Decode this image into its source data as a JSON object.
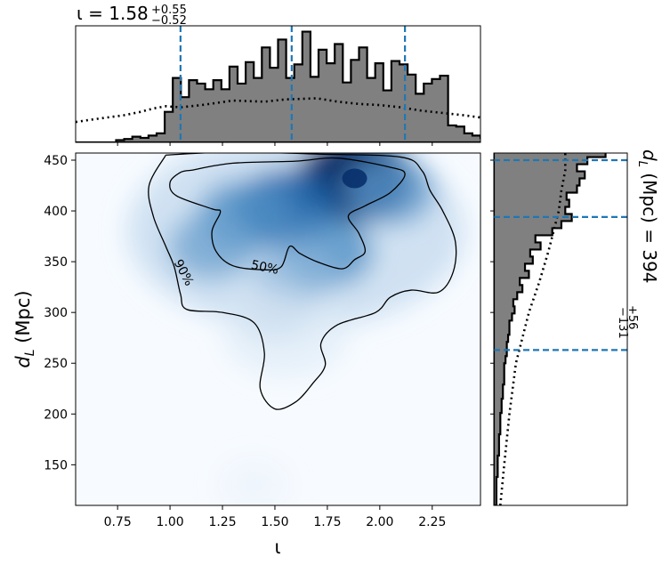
{
  "chart_data": [
    {
      "panel": "top-marginal",
      "type": "histogram",
      "title_symbol": "ι",
      "title_value": "1.58",
      "title_plus": "+0.55",
      "title_minus": "−0.52",
      "xlim": [
        0.55,
        2.48
      ],
      "bin_edges_start": 0.55,
      "bin_width": 0.0386,
      "posterior_counts": [
        0,
        0,
        0,
        0,
        0,
        0.02,
        0.03,
        0.05,
        0.04,
        0.06,
        0.08,
        0.27,
        0.57,
        0.4,
        0.55,
        0.52,
        0.47,
        0.55,
        0.47,
        0.67,
        0.52,
        0.71,
        0.57,
        0.84,
        0.66,
        0.91,
        0.57,
        0.69,
        0.98,
        0.58,
        0.82,
        0.7,
        0.87,
        0.53,
        0.73,
        0.84,
        0.57,
        0.7,
        0.46,
        0.72,
        0.69,
        0.6,
        0.43,
        0.52,
        0.56,
        0.59,
        0.15,
        0.14,
        0.08,
        0.06,
        0.04,
        0.05,
        0.04,
        0.03,
        0.03,
        0.02,
        0.03,
        0.02,
        0,
        0,
        0,
        0
      ],
      "prior_curve": [
        [
          0.55,
          0.18
        ],
        [
          0.62,
          0.2
        ],
        [
          0.7,
          0.22
        ],
        [
          0.78,
          0.24
        ],
        [
          0.86,
          0.27
        ],
        [
          0.92,
          0.3
        ],
        [
          0.98,
          0.32
        ],
        [
          1.05,
          0.31
        ],
        [
          1.15,
          0.33
        ],
        [
          1.3,
          0.37
        ],
        [
          1.45,
          0.36
        ],
        [
          1.55,
          0.38
        ],
        [
          1.7,
          0.39
        ],
        [
          1.8,
          0.36
        ],
        [
          1.9,
          0.34
        ],
        [
          2.0,
          0.33
        ],
        [
          2.1,
          0.31
        ],
        [
          2.2,
          0.28
        ],
        [
          2.3,
          0.26
        ],
        [
          2.4,
          0.24
        ],
        [
          2.48,
          0.22
        ]
      ],
      "quantile_lines": [
        1.05,
        1.58,
        2.12
      ]
    },
    {
      "panel": "joint-density",
      "type": "heatmap",
      "xlabel": "ι",
      "ylabel": "d_L (Mpc)",
      "xlim": [
        0.55,
        2.48
      ],
      "ylim": [
        110,
        457
      ],
      "x_ticks": [
        "0.75",
        "1.00",
        "1.25",
        "1.50",
        "1.75",
        "2.00",
        "2.25"
      ],
      "y_ticks": [
        "150",
        "200",
        "250",
        "300",
        "350",
        "400",
        "450"
      ],
      "x_tick_values": [
        0.75,
        1.0,
        1.25,
        1.5,
        1.75,
        2.0,
        2.25
      ],
      "y_tick_values": [
        150,
        200,
        250,
        300,
        350,
        400,
        450
      ],
      "colormap": "Blues",
      "density_peaks": [
        {
          "x": 1.88,
          "y": 432,
          "weight": 1.0
        },
        {
          "x": 1.55,
          "y": 402,
          "weight": 0.75
        },
        {
          "x": 1.35,
          "y": 395,
          "weight": 0.55
        },
        {
          "x": 1.75,
          "y": 360,
          "weight": 0.55
        },
        {
          "x": 1.2,
          "y": 365,
          "weight": 0.45
        },
        {
          "x": 2.05,
          "y": 420,
          "weight": 0.5
        },
        {
          "x": 1.6,
          "y": 340,
          "weight": 0.35
        },
        {
          "x": 1.5,
          "y": 300,
          "weight": 0.15
        },
        {
          "x": 1.4,
          "y": 130,
          "weight": 0.05
        }
      ],
      "contour_levels": [
        {
          "label": "50%",
          "path": [
            [
              1.1,
              440
            ],
            [
              1.3,
              447
            ],
            [
              1.6,
              449
            ],
            [
              1.8,
              452
            ],
            [
              2.05,
              443
            ],
            [
              2.12,
              436
            ],
            [
              2.05,
              418
            ],
            [
              1.93,
              405
            ],
            [
              1.85,
              395
            ],
            [
              1.9,
              378
            ],
            [
              1.93,
              360
            ],
            [
              1.88,
              352
            ],
            [
              1.82,
              343
            ],
            [
              1.7,
              350
            ],
            [
              1.62,
              358
            ],
            [
              1.57,
              365
            ],
            [
              1.53,
              345
            ],
            [
              1.45,
              342
            ],
            [
              1.3,
              346
            ],
            [
              1.22,
              360
            ],
            [
              1.2,
              380
            ],
            [
              1.24,
              399
            ],
            [
              1.2,
              402
            ],
            [
              1.03,
              415
            ],
            [
              1.0,
              428
            ],
            [
              1.05,
              438
            ],
            [
              1.1,
              440
            ]
          ]
        },
        {
          "label": "90%",
          "path": [
            [
              0.98,
              455
            ],
            [
              1.3,
              458
            ],
            [
              1.7,
              456
            ],
            [
              2.1,
              453
            ],
            [
              2.2,
              440
            ],
            [
              2.24,
              420
            ],
            [
              2.3,
              400
            ],
            [
              2.36,
              370
            ],
            [
              2.35,
              340
            ],
            [
              2.28,
              320
            ],
            [
              2.15,
              322
            ],
            [
              2.05,
              315
            ],
            [
              1.98,
              300
            ],
            [
              1.8,
              288
            ],
            [
              1.72,
              270
            ],
            [
              1.74,
              248
            ],
            [
              1.68,
              230
            ],
            [
              1.6,
              212
            ],
            [
              1.5,
              205
            ],
            [
              1.43,
              225
            ],
            [
              1.45,
              260
            ],
            [
              1.4,
              290
            ],
            [
              1.25,
              300
            ],
            [
              1.08,
              303
            ],
            [
              1.05,
              318
            ],
            [
              1.02,
              345
            ],
            [
              0.98,
              365
            ],
            [
              0.92,
              395
            ],
            [
              0.9,
              425
            ],
            [
              0.98,
              455
            ]
          ]
        }
      ]
    },
    {
      "panel": "right-marginal",
      "type": "histogram",
      "title_symbol": "d_L (Mpc)",
      "title_value": "394",
      "title_plus": "+56",
      "title_minus": "−131",
      "ylim": [
        110,
        457
      ],
      "bin_edges_start": 110,
      "bin_width": 7,
      "posterior_counts": [
        0.02,
        0.02,
        0.02,
        0.02,
        0.03,
        0.03,
        0.03,
        0.04,
        0.04,
        0.04,
        0.05,
        0.05,
        0.05,
        0.06,
        0.06,
        0.07,
        0.07,
        0.08,
        0.08,
        0.08,
        0.09,
        0.1,
        0.1,
        0.11,
        0.12,
        0.12,
        0.14,
        0.16,
        0.15,
        0.18,
        0.22,
        0.2,
        0.27,
        0.24,
        0.3,
        0.28,
        0.36,
        0.32,
        0.45,
        0.52,
        0.6,
        0.55,
        0.58,
        0.56,
        0.64,
        0.66,
        0.7,
        0.64,
        0.72,
        0.86,
        0.93,
        0.82
      ],
      "prior_curve": [
        [
          110,
          0.05
        ],
        [
          150,
          0.08
        ],
        [
          200,
          0.12
        ],
        [
          250,
          0.17
        ],
        [
          300,
          0.27
        ],
        [
          330,
          0.35
        ],
        [
          360,
          0.42
        ],
        [
          380,
          0.46
        ],
        [
          400,
          0.5
        ],
        [
          420,
          0.52
        ],
        [
          440,
          0.55
        ],
        [
          457,
          0.55
        ]
      ],
      "quantile_lines": [
        263,
        394,
        450
      ]
    }
  ],
  "labels": {
    "top_title_prefix": "ι = ",
    "top_title_value": "1.58",
    "top_title_sup": "+0.55",
    "top_title_sub": "−0.52",
    "right_title_sym": "d",
    "right_title_subL": "L",
    "right_title_rest": " (Mpc) = ",
    "right_title_value": "394",
    "right_title_sup": "+56",
    "right_title_sub": "−131",
    "xlabel": "ι",
    "ylabel_sym": "d",
    "ylabel_sub": "L",
    "ylabel_rest": " (Mpc)",
    "contour_50": "50%",
    "contour_90": "90%"
  },
  "colors": {
    "hist_fill": "#808080",
    "quantile_line": "#1f77b4",
    "contour": "#000000"
  }
}
